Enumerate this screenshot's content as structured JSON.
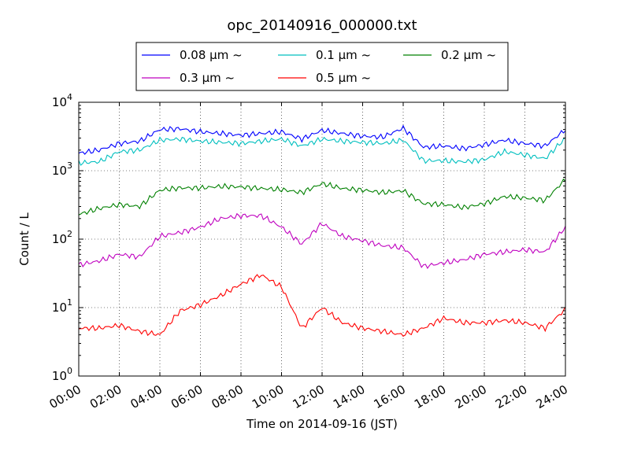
{
  "chart_data": {
    "type": "line",
    "title": "opc_20140916_000000.txt",
    "xlabel": "Time on 2014-09-16 (JST)",
    "ylabel": "Count / L",
    "y_scale": "log",
    "ylim": [
      1,
      10000
    ],
    "xlim": [
      "00:00",
      "24:00"
    ],
    "grid": true,
    "legend_placement": "top-center, above plot, 3 columns",
    "x_ticks": [
      "00:00",
      "02:00",
      "04:00",
      "06:00",
      "08:00",
      "10:00",
      "12:00",
      "14:00",
      "16:00",
      "18:00",
      "20:00",
      "22:00",
      "24:00"
    ],
    "y_ticks": [
      {
        "value": 1,
        "base": "10",
        "exp": "0"
      },
      {
        "value": 10,
        "base": "10",
        "exp": "1"
      },
      {
        "value": 100,
        "base": "10",
        "exp": "2"
      },
      {
        "value": 1000,
        "base": "10",
        "exp": "3"
      },
      {
        "value": 10000,
        "base": "10",
        "exp": "4"
      }
    ],
    "x": [
      0,
      1,
      2,
      3,
      4,
      5,
      6,
      7,
      8,
      9,
      10,
      11,
      12,
      13,
      14,
      15,
      16,
      17,
      18,
      19,
      20,
      21,
      22,
      23,
      24
    ],
    "series": [
      {
        "name": "0.08 μm ~",
        "color": "#0000ff",
        "values": [
          1800,
          2000,
          2500,
          2700,
          4000,
          4100,
          3700,
          3500,
          3300,
          3500,
          3700,
          2900,
          3900,
          3500,
          3200,
          3100,
          4200,
          2200,
          2300,
          2100,
          2400,
          2800,
          2500,
          2300,
          4000
        ]
      },
      {
        "name": "0.1 μm ~",
        "color": "#00bfbf",
        "values": [
          1300,
          1350,
          1900,
          2000,
          2800,
          2900,
          2700,
          2600,
          2500,
          2700,
          2900,
          2300,
          2900,
          2700,
          2600,
          2500,
          2800,
          1400,
          1400,
          1350,
          1450,
          1900,
          1700,
          1500,
          3000
        ]
      },
      {
        "name": "0.2 μm ~",
        "color": "#008000",
        "values": [
          230,
          280,
          320,
          300,
          520,
          560,
          560,
          590,
          580,
          550,
          530,
          480,
          650,
          550,
          520,
          480,
          510,
          330,
          320,
          290,
          330,
          420,
          400,
          370,
          750
        ]
      },
      {
        "name": "0.3 μm ~",
        "color": "#bf00bf",
        "values": [
          42,
          48,
          60,
          55,
          110,
          125,
          150,
          200,
          220,
          220,
          150,
          85,
          170,
          110,
          95,
          80,
          75,
          40,
          45,
          50,
          60,
          65,
          70,
          65,
          150
        ]
      },
      {
        "name": "0.5 μm ~",
        "color": "#ff0000",
        "values": [
          5,
          5,
          5.5,
          4.5,
          4,
          9,
          11,
          15,
          22,
          30,
          20,
          5,
          10,
          6,
          5,
          4.5,
          4,
          5,
          7,
          6,
          6,
          6.5,
          6,
          5,
          9.5
        ]
      }
    ]
  }
}
